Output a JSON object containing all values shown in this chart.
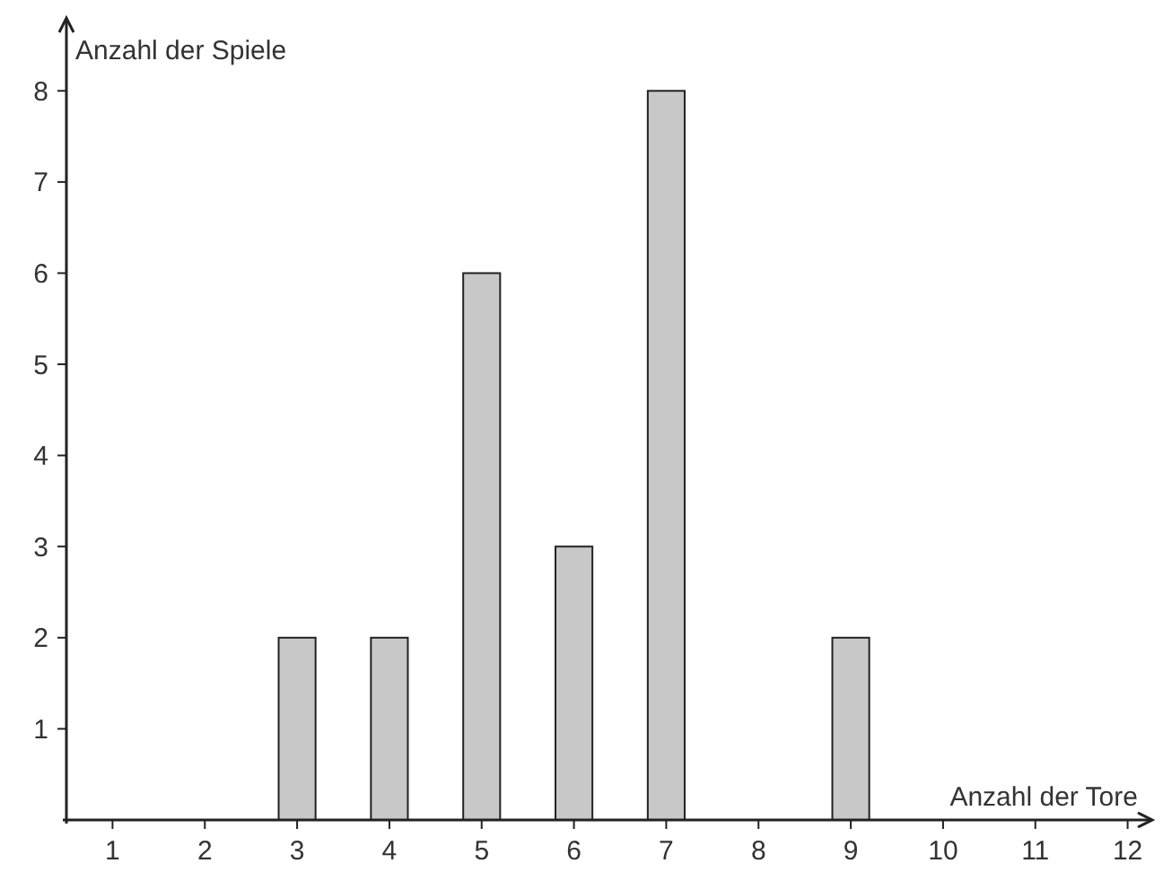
{
  "chart_data": {
    "type": "bar",
    "xlabel": "Anzahl der Tore",
    "ylabel": "Anzahl der Spiele",
    "categories": [
      "1",
      "2",
      "3",
      "4",
      "5",
      "6",
      "7",
      "8",
      "9",
      "10",
      "11",
      "12"
    ],
    "values": [
      0,
      0,
      2,
      2,
      6,
      3,
      8,
      0,
      2,
      0,
      0,
      0
    ],
    "color": "#c8c8c8",
    "ylim": [
      0,
      8.8
    ],
    "yticks": [
      1,
      2,
      3,
      4,
      5,
      6,
      7,
      8
    ],
    "grid": false
  }
}
